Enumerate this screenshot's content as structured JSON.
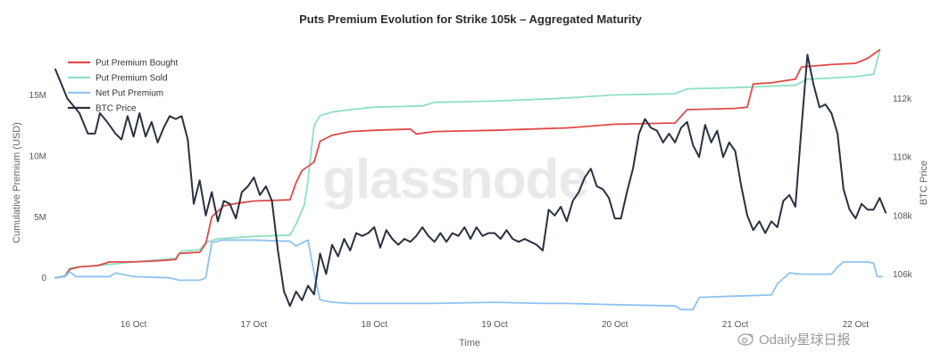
{
  "chart_data": {
    "type": "line",
    "title": "Puts Premium Evolution for Strike 105k – Aggregated Maturity",
    "xlabel": "Time",
    "ylabel_left": "Cumulative Premium (USD)",
    "ylabel_right": "BTC Price",
    "x_ticks": [
      "16 Oct",
      "17 Oct",
      "18 Oct",
      "19 Oct",
      "20 Oct",
      "21 Oct",
      "22 Oct"
    ],
    "y_left_ticks": [
      "0",
      "5M",
      "10M",
      "15M"
    ],
    "y_right_ticks": [
      "106k",
      "108k",
      "110k",
      "112k"
    ],
    "x_range_days": [
      15.35,
      22.25
    ],
    "y_left_range_millions": [
      -2.8,
      19.5
    ],
    "y_right_range_thousands": [
      104.7,
      114.0
    ],
    "grid": false,
    "legend_position": "top-left",
    "colors": {
      "bought": "#e04a4a",
      "sold": "#8ee0c2",
      "net": "#8ec3f0",
      "btc": "#2a3140"
    },
    "series": [
      {
        "name": "Put Premium Bought",
        "axis": "left",
        "color": "#e04a4a",
        "points": [
          [
            15.35,
            0
          ],
          [
            15.43,
            0.1
          ],
          [
            15.47,
            0.7
          ],
          [
            15.55,
            0.9
          ],
          [
            15.7,
            1.0
          ],
          [
            15.8,
            1.3
          ],
          [
            16.0,
            1.3
          ],
          [
            16.2,
            1.4
          ],
          [
            16.35,
            1.5
          ],
          [
            16.38,
            2.0
          ],
          [
            16.55,
            2.1
          ],
          [
            16.6,
            2.8
          ],
          [
            16.65,
            5.0
          ],
          [
            16.75,
            5.9
          ],
          [
            16.85,
            6.1
          ],
          [
            17.0,
            6.3
          ],
          [
            17.3,
            6.4
          ],
          [
            17.35,
            7.8
          ],
          [
            17.4,
            8.8
          ],
          [
            17.5,
            9.5
          ],
          [
            17.55,
            11.2
          ],
          [
            17.65,
            11.7
          ],
          [
            17.8,
            12.0
          ],
          [
            18.0,
            12.1
          ],
          [
            18.3,
            12.2
          ],
          [
            18.35,
            11.8
          ],
          [
            18.5,
            12.0
          ],
          [
            19.0,
            12.1
          ],
          [
            19.3,
            12.2
          ],
          [
            19.6,
            12.3
          ],
          [
            20.0,
            12.6
          ],
          [
            20.5,
            12.7
          ],
          [
            20.6,
            13.8
          ],
          [
            21.0,
            13.9
          ],
          [
            21.1,
            14.0
          ],
          [
            21.15,
            15.9
          ],
          [
            21.3,
            16.0
          ],
          [
            21.5,
            16.3
          ],
          [
            21.55,
            17.3
          ],
          [
            21.8,
            17.5
          ],
          [
            22.0,
            17.6
          ],
          [
            22.1,
            18.0
          ],
          [
            22.2,
            18.7
          ]
        ]
      },
      {
        "name": "Put Premium Sold",
        "axis": "left",
        "color": "#8ee0c2",
        "points": [
          [
            15.35,
            0
          ],
          [
            15.43,
            0.2
          ],
          [
            15.47,
            0.8
          ],
          [
            15.55,
            0.9
          ],
          [
            15.8,
            1.1
          ],
          [
            16.0,
            1.3
          ],
          [
            16.35,
            1.6
          ],
          [
            16.4,
            2.2
          ],
          [
            16.55,
            2.3
          ],
          [
            16.6,
            2.9
          ],
          [
            16.7,
            3.2
          ],
          [
            17.0,
            3.4
          ],
          [
            17.3,
            3.5
          ],
          [
            17.35,
            4.4
          ],
          [
            17.42,
            6.0
          ],
          [
            17.45,
            8.0
          ],
          [
            17.5,
            12.5
          ],
          [
            17.55,
            13.3
          ],
          [
            17.65,
            13.6
          ],
          [
            17.8,
            13.8
          ],
          [
            18.0,
            14.0
          ],
          [
            18.4,
            14.1
          ],
          [
            18.5,
            14.4
          ],
          [
            19.0,
            14.5
          ],
          [
            19.5,
            14.7
          ],
          [
            20.0,
            15.0
          ],
          [
            20.5,
            15.1
          ],
          [
            20.6,
            15.5
          ],
          [
            21.0,
            15.6
          ],
          [
            21.5,
            15.8
          ],
          [
            21.6,
            16.3
          ],
          [
            22.0,
            16.5
          ],
          [
            22.15,
            16.7
          ],
          [
            22.2,
            18.6
          ]
        ]
      },
      {
        "name": "Net Put Premium",
        "axis": "left",
        "color": "#8ec3f0",
        "points": [
          [
            15.35,
            0
          ],
          [
            15.43,
            0.1
          ],
          [
            15.47,
            0.5
          ],
          [
            15.52,
            0.1
          ],
          [
            15.8,
            0.1
          ],
          [
            15.85,
            0.4
          ],
          [
            16.0,
            0.1
          ],
          [
            16.3,
            0.0
          ],
          [
            16.38,
            -0.2
          ],
          [
            16.55,
            -0.2
          ],
          [
            16.6,
            0.0
          ],
          [
            16.65,
            2.9
          ],
          [
            16.75,
            3.1
          ],
          [
            17.0,
            3.1
          ],
          [
            17.3,
            3.0
          ],
          [
            17.35,
            2.6
          ],
          [
            17.45,
            3.1
          ],
          [
            17.5,
            0.4
          ],
          [
            17.55,
            -1.8
          ],
          [
            17.65,
            -2.0
          ],
          [
            17.8,
            -2.1
          ],
          [
            18.3,
            -2.1
          ],
          [
            18.5,
            -2.1
          ],
          [
            19.0,
            -2.0
          ],
          [
            19.4,
            -2.1
          ],
          [
            19.6,
            -2.1
          ],
          [
            20.0,
            -2.2
          ],
          [
            20.5,
            -2.3
          ],
          [
            20.55,
            -2.6
          ],
          [
            20.65,
            -2.6
          ],
          [
            20.7,
            -1.6
          ],
          [
            21.0,
            -1.5
          ],
          [
            21.3,
            -1.4
          ],
          [
            21.35,
            -0.5
          ],
          [
            21.45,
            0.4
          ],
          [
            21.55,
            0.3
          ],
          [
            21.8,
            0.3
          ],
          [
            21.85,
            0.9
          ],
          [
            21.9,
            1.3
          ],
          [
            22.1,
            1.3
          ],
          [
            22.15,
            1.2
          ],
          [
            22.18,
            0.1
          ],
          [
            22.22,
            0.1
          ]
        ]
      },
      {
        "name": "BTC Price",
        "axis": "right",
        "color": "#2a3140",
        "points": [
          [
            15.35,
            113.0
          ],
          [
            15.45,
            112.0
          ],
          [
            15.55,
            111.5
          ],
          [
            15.62,
            110.8
          ],
          [
            15.68,
            110.8
          ],
          [
            15.72,
            111.5
          ],
          [
            15.78,
            111.2
          ],
          [
            15.85,
            110.8
          ],
          [
            15.9,
            110.6
          ],
          [
            15.95,
            111.4
          ],
          [
            16.0,
            110.7
          ],
          [
            16.05,
            111.5
          ],
          [
            16.1,
            110.7
          ],
          [
            16.15,
            111.2
          ],
          [
            16.2,
            110.5
          ],
          [
            16.25,
            111.0
          ],
          [
            16.3,
            111.4
          ],
          [
            16.35,
            111.3
          ],
          [
            16.4,
            111.4
          ],
          [
            16.45,
            110.6
          ],
          [
            16.5,
            108.4
          ],
          [
            16.55,
            109.2
          ],
          [
            16.6,
            108.0
          ],
          [
            16.65,
            108.8
          ],
          [
            16.7,
            107.8
          ],
          [
            16.75,
            108.5
          ],
          [
            16.8,
            108.4
          ],
          [
            16.85,
            107.9
          ],
          [
            16.9,
            108.8
          ],
          [
            16.95,
            109.0
          ],
          [
            17.0,
            109.3
          ],
          [
            17.05,
            108.7
          ],
          [
            17.1,
            109.0
          ],
          [
            17.15,
            108.5
          ],
          [
            17.2,
            106.8
          ],
          [
            17.25,
            105.4
          ],
          [
            17.3,
            104.9
          ],
          [
            17.35,
            105.4
          ],
          [
            17.4,
            105.1
          ],
          [
            17.45,
            105.6
          ],
          [
            17.5,
            105.3
          ],
          [
            17.55,
            106.7
          ],
          [
            17.6,
            106.0
          ],
          [
            17.65,
            107.0
          ],
          [
            17.7,
            106.6
          ],
          [
            17.75,
            107.2
          ],
          [
            17.8,
            106.8
          ],
          [
            17.85,
            107.4
          ],
          [
            17.9,
            107.3
          ],
          [
            17.95,
            107.4
          ],
          [
            18.0,
            107.6
          ],
          [
            18.05,
            106.9
          ],
          [
            18.1,
            107.5
          ],
          [
            18.15,
            107.2
          ],
          [
            18.2,
            107.0
          ],
          [
            18.25,
            107.2
          ],
          [
            18.3,
            107.1
          ],
          [
            18.35,
            107.3
          ],
          [
            18.4,
            107.6
          ],
          [
            18.45,
            107.3
          ],
          [
            18.5,
            107.1
          ],
          [
            18.55,
            107.4
          ],
          [
            18.6,
            107.1
          ],
          [
            18.65,
            107.4
          ],
          [
            18.7,
            107.3
          ],
          [
            18.75,
            107.6
          ],
          [
            18.8,
            107.2
          ],
          [
            18.85,
            107.6
          ],
          [
            18.9,
            107.3
          ],
          [
            18.95,
            107.4
          ],
          [
            19.0,
            107.4
          ],
          [
            19.05,
            107.2
          ],
          [
            19.1,
            107.5
          ],
          [
            19.15,
            107.2
          ],
          [
            19.2,
            107.1
          ],
          [
            19.25,
            107.2
          ],
          [
            19.3,
            107.1
          ],
          [
            19.35,
            107.0
          ],
          [
            19.4,
            106.8
          ],
          [
            19.45,
            108.2
          ],
          [
            19.5,
            108.0
          ],
          [
            19.55,
            108.3
          ],
          [
            19.6,
            107.8
          ],
          [
            19.65,
            108.5
          ],
          [
            19.7,
            108.8
          ],
          [
            19.75,
            109.3
          ],
          [
            19.8,
            109.6
          ],
          [
            19.85,
            109.0
          ],
          [
            19.9,
            108.9
          ],
          [
            19.95,
            108.6
          ],
          [
            20.0,
            107.9
          ],
          [
            20.05,
            107.9
          ],
          [
            20.1,
            108.8
          ],
          [
            20.15,
            109.6
          ],
          [
            20.2,
            110.8
          ],
          [
            20.25,
            111.3
          ],
          [
            20.3,
            111.0
          ],
          [
            20.35,
            110.9
          ],
          [
            20.4,
            110.5
          ],
          [
            20.45,
            110.8
          ],
          [
            20.5,
            110.5
          ],
          [
            20.55,
            111.0
          ],
          [
            20.6,
            111.2
          ],
          [
            20.65,
            110.4
          ],
          [
            20.7,
            110.0
          ],
          [
            20.75,
            111.1
          ],
          [
            20.8,
            110.5
          ],
          [
            20.85,
            110.9
          ],
          [
            20.9,
            110.0
          ],
          [
            20.95,
            110.5
          ],
          [
            21.0,
            110.2
          ],
          [
            21.05,
            109.0
          ],
          [
            21.1,
            108.0
          ],
          [
            21.15,
            107.5
          ],
          [
            21.2,
            107.8
          ],
          [
            21.25,
            107.4
          ],
          [
            21.3,
            107.8
          ],
          [
            21.35,
            107.6
          ],
          [
            21.4,
            108.5
          ],
          [
            21.45,
            108.7
          ],
          [
            21.5,
            108.3
          ],
          [
            21.55,
            111.0
          ],
          [
            21.6,
            113.5
          ],
          [
            21.65,
            112.5
          ],
          [
            21.7,
            111.7
          ],
          [
            21.75,
            111.8
          ],
          [
            21.8,
            111.5
          ],
          [
            21.85,
            110.8
          ],
          [
            21.9,
            108.9
          ],
          [
            21.95,
            108.2
          ],
          [
            22.0,
            107.9
          ],
          [
            22.05,
            108.4
          ],
          [
            22.1,
            108.2
          ],
          [
            22.15,
            108.2
          ],
          [
            22.2,
            108.6
          ],
          [
            22.25,
            108.1
          ]
        ]
      }
    ]
  },
  "watermark": "glassnode",
  "credit": "Odaily星球日报",
  "credit_icon": "weibo-icon"
}
